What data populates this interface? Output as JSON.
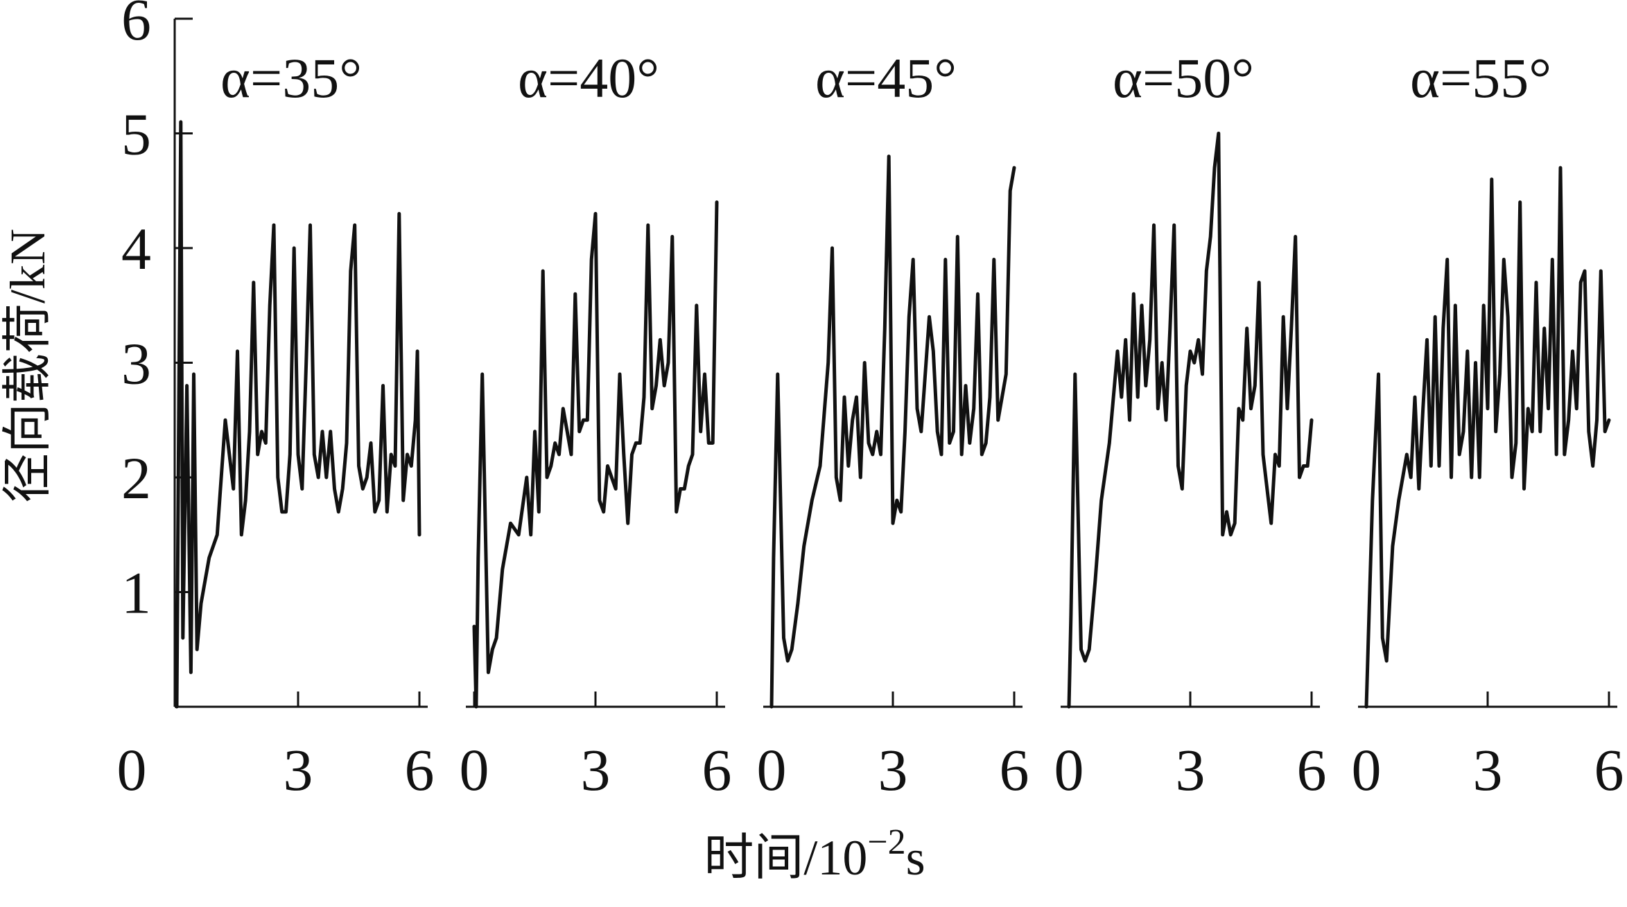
{
  "chart_data": {
    "type": "line",
    "xlabel": "时间/10",
    "xlabel_exp": "−2",
    "xlabel_suffix": "s",
    "ylabel": "径向载荷/kN",
    "ylim": [
      0,
      6
    ],
    "yticks": [
      "1",
      "2",
      "3",
      "4",
      "5",
      "6"
    ],
    "y_origin_label": "0",
    "xlim": [
      0,
      6
    ],
    "xticks": [
      "0",
      "3",
      "6"
    ],
    "grid": false,
    "legend": "none",
    "line_color": "#111111",
    "panels": [
      {
        "label": "α=35°",
        "x": [
          0.0,
          0.1,
          0.15,
          0.25,
          0.35,
          0.42,
          0.5,
          0.6,
          0.8,
          1.0,
          1.2,
          1.4,
          1.5,
          1.6,
          1.7,
          1.8,
          1.9,
          2.0,
          2.1,
          2.2,
          2.3,
          2.4,
          2.5,
          2.6,
          2.7,
          2.8,
          2.9,
          3.0,
          3.1,
          3.2,
          3.3,
          3.4,
          3.5,
          3.6,
          3.7,
          3.8,
          3.9,
          4.0,
          4.1,
          4.2,
          4.3,
          4.4,
          4.5,
          4.6,
          4.7,
          4.8,
          4.9,
          5.0,
          5.1,
          5.2,
          5.3,
          5.4,
          5.5,
          5.6,
          5.7,
          5.8,
          5.9,
          5.95,
          6.0
        ],
        "y": [
          0.0,
          5.1,
          0.6,
          2.8,
          0.3,
          2.9,
          0.5,
          0.9,
          1.3,
          1.5,
          2.5,
          1.9,
          3.1,
          1.5,
          1.8,
          2.4,
          3.7,
          2.2,
          2.4,
          2.3,
          3.5,
          4.2,
          2.0,
          1.7,
          1.7,
          2.2,
          4.0,
          2.2,
          1.9,
          3.0,
          4.2,
          2.2,
          2.0,
          2.4,
          2.0,
          2.4,
          1.9,
          1.7,
          1.9,
          2.3,
          3.8,
          4.2,
          2.1,
          1.9,
          2.0,
          2.3,
          1.7,
          1.8,
          2.8,
          1.7,
          2.2,
          2.1,
          4.3,
          1.8,
          2.2,
          2.1,
          2.5,
          3.1,
          1.5
        ]
      },
      {
        "label": "α=40°",
        "x": [
          0.0,
          0.05,
          0.1,
          0.2,
          0.35,
          0.45,
          0.55,
          0.7,
          0.9,
          1.1,
          1.3,
          1.4,
          1.5,
          1.6,
          1.7,
          1.8,
          1.9,
          2.0,
          2.1,
          2.2,
          2.3,
          2.4,
          2.5,
          2.6,
          2.7,
          2.8,
          2.9,
          3.0,
          3.1,
          3.2,
          3.3,
          3.4,
          3.5,
          3.6,
          3.7,
          3.8,
          3.9,
          4.0,
          4.1,
          4.2,
          4.3,
          4.4,
          4.5,
          4.6,
          4.7,
          4.8,
          4.9,
          5.0,
          5.1,
          5.2,
          5.3,
          5.4,
          5.5,
          5.6,
          5.7,
          5.8,
          5.9,
          6.0
        ],
        "y": [
          0.7,
          0.0,
          1.3,
          2.9,
          0.3,
          0.5,
          0.6,
          1.2,
          1.6,
          1.5,
          2.0,
          1.5,
          2.4,
          1.7,
          3.8,
          2.0,
          2.1,
          2.3,
          2.2,
          2.6,
          2.4,
          2.2,
          3.6,
          2.4,
          2.5,
          2.5,
          3.9,
          4.3,
          1.8,
          1.7,
          2.1,
          2.0,
          1.9,
          2.9,
          2.2,
          1.6,
          2.2,
          2.3,
          2.3,
          2.7,
          4.2,
          2.6,
          2.8,
          3.2,
          2.8,
          3.0,
          4.1,
          1.7,
          1.9,
          1.9,
          2.1,
          2.2,
          3.5,
          2.4,
          2.9,
          2.3,
          2.3,
          4.4
        ]
      },
      {
        "label": "α=45°",
        "x": [
          0.0,
          0.05,
          0.15,
          0.3,
          0.4,
          0.5,
          0.65,
          0.8,
          1.0,
          1.2,
          1.4,
          1.5,
          1.6,
          1.7,
          1.8,
          1.9,
          2.0,
          2.1,
          2.2,
          2.3,
          2.4,
          2.5,
          2.6,
          2.7,
          2.8,
          2.9,
          3.0,
          3.1,
          3.2,
          3.3,
          3.4,
          3.5,
          3.6,
          3.7,
          3.8,
          3.9,
          4.0,
          4.1,
          4.2,
          4.3,
          4.4,
          4.5,
          4.6,
          4.7,
          4.8,
          4.9,
          5.0,
          5.1,
          5.2,
          5.3,
          5.4,
          5.5,
          5.6,
          5.7,
          5.8,
          5.9,
          6.0
        ],
        "y": [
          0.0,
          1.3,
          2.9,
          0.6,
          0.4,
          0.5,
          0.9,
          1.4,
          1.8,
          2.1,
          3.0,
          4.0,
          2.0,
          1.8,
          2.7,
          2.1,
          2.5,
          2.7,
          2.0,
          3.0,
          2.3,
          2.2,
          2.4,
          2.2,
          3.3,
          4.8,
          1.6,
          1.8,
          1.7,
          2.4,
          3.4,
          3.9,
          2.6,
          2.4,
          2.9,
          3.4,
          3.1,
          2.4,
          2.2,
          3.9,
          2.3,
          2.4,
          4.1,
          2.2,
          2.8,
          2.3,
          2.6,
          3.6,
          2.2,
          2.3,
          2.7,
          3.9,
          2.5,
          2.7,
          2.9,
          4.5,
          4.7
        ]
      },
      {
        "label": "α=50°",
        "x": [
          0.0,
          0.05,
          0.15,
          0.3,
          0.4,
          0.5,
          0.65,
          0.8,
          1.0,
          1.2,
          1.3,
          1.4,
          1.5,
          1.6,
          1.7,
          1.8,
          1.9,
          2.0,
          2.1,
          2.2,
          2.3,
          2.4,
          2.5,
          2.6,
          2.7,
          2.8,
          2.9,
          3.0,
          3.1,
          3.2,
          3.3,
          3.4,
          3.5,
          3.6,
          3.7,
          3.8,
          3.9,
          4.0,
          4.1,
          4.2,
          4.3,
          4.4,
          4.5,
          4.6,
          4.7,
          4.8,
          4.9,
          5.0,
          5.1,
          5.2,
          5.3,
          5.4,
          5.5,
          5.6,
          5.7,
          5.8,
          5.9,
          6.0
        ],
        "y": [
          0.0,
          0.8,
          2.9,
          0.5,
          0.4,
          0.5,
          1.1,
          1.8,
          2.3,
          3.1,
          2.7,
          3.2,
          2.5,
          3.6,
          2.7,
          3.5,
          2.8,
          3.2,
          4.2,
          2.6,
          3.0,
          2.5,
          3.3,
          4.2,
          2.1,
          1.9,
          2.8,
          3.1,
          3.0,
          3.2,
          2.9,
          3.8,
          4.1,
          4.7,
          5.0,
          1.5,
          1.7,
          1.5,
          1.6,
          2.6,
          2.5,
          3.3,
          2.6,
          2.8,
          3.7,
          2.2,
          1.9,
          1.6,
          2.2,
          2.1,
          3.4,
          2.6,
          3.3,
          4.1,
          2.0,
          2.1,
          2.1,
          2.5
        ]
      },
      {
        "label": "α=55°",
        "x": [
          0.0,
          0.05,
          0.15,
          0.3,
          0.4,
          0.5,
          0.65,
          0.8,
          1.0,
          1.1,
          1.2,
          1.3,
          1.4,
          1.5,
          1.6,
          1.7,
          1.8,
          1.9,
          2.0,
          2.1,
          2.2,
          2.3,
          2.4,
          2.5,
          2.6,
          2.7,
          2.8,
          2.9,
          3.0,
          3.1,
          3.2,
          3.3,
          3.4,
          3.5,
          3.6,
          3.7,
          3.8,
          3.9,
          4.0,
          4.1,
          4.2,
          4.3,
          4.4,
          4.5,
          4.6,
          4.7,
          4.8,
          4.9,
          5.0,
          5.1,
          5.2,
          5.3,
          5.4,
          5.5,
          5.6,
          5.7,
          5.8,
          5.9,
          6.0
        ],
        "y": [
          0.0,
          0.6,
          1.8,
          2.9,
          0.6,
          0.4,
          1.4,
          1.8,
          2.2,
          2.0,
          2.7,
          1.9,
          2.6,
          3.2,
          2.1,
          3.4,
          2.1,
          3.3,
          3.9,
          2.0,
          3.5,
          2.2,
          2.4,
          3.1,
          2.0,
          3.0,
          2.0,
          3.5,
          2.6,
          4.6,
          2.4,
          2.9,
          3.9,
          3.4,
          2.0,
          2.3,
          4.4,
          1.9,
          2.6,
          2.4,
          3.7,
          2.4,
          3.3,
          2.6,
          3.9,
          2.2,
          4.7,
          2.2,
          2.5,
          3.1,
          2.6,
          3.7,
          3.8,
          2.4,
          2.1,
          2.5,
          3.8,
          2.4,
          2.5
        ]
      }
    ]
  }
}
